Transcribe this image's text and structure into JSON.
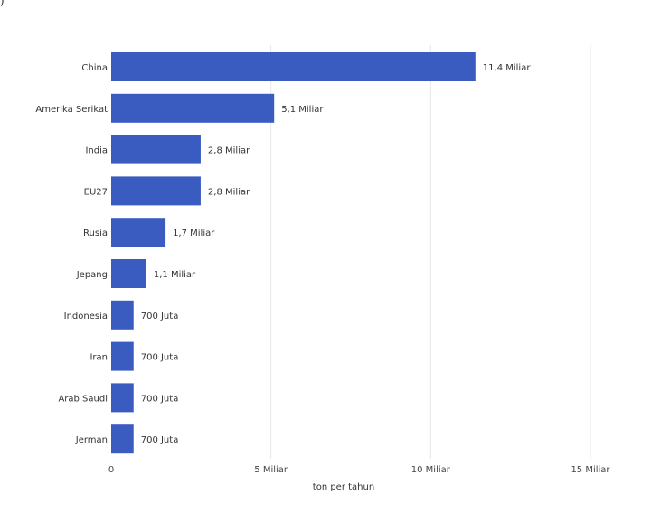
{
  "corner_glyph": ")",
  "chart_data": {
    "type": "bar",
    "orientation": "horizontal",
    "categories": [
      "China",
      "Amerika Serikat",
      "India",
      "EU27",
      "Rusia",
      "Jepang",
      "Indonesia",
      "Iran",
      "Arab Saudi",
      "Jerman"
    ],
    "values": [
      11.4,
      5.1,
      2.8,
      2.8,
      1.7,
      1.1,
      0.7,
      0.7,
      0.7,
      0.7
    ],
    "value_labels": [
      "11,4 Miliar",
      "5,1 Miliar",
      "2,8 Miliar",
      "2,8 Miliar",
      "1,7 Miliar",
      "1,1 Miliar",
      "700 Juta",
      "700 Juta",
      "700 Juta",
      "700 Juta"
    ],
    "xlim": [
      0,
      15
    ],
    "xticks": [
      0,
      5,
      10,
      15
    ],
    "xtick_labels": [
      "0",
      "5 Miliar",
      "10 Miliar",
      "15 Miliar"
    ],
    "xlabel": "ton per tahun",
    "ylabel": "",
    "title": "",
    "grid": true,
    "bar_color": "#3a5bbf",
    "grid_color": "#e6e6e6"
  }
}
